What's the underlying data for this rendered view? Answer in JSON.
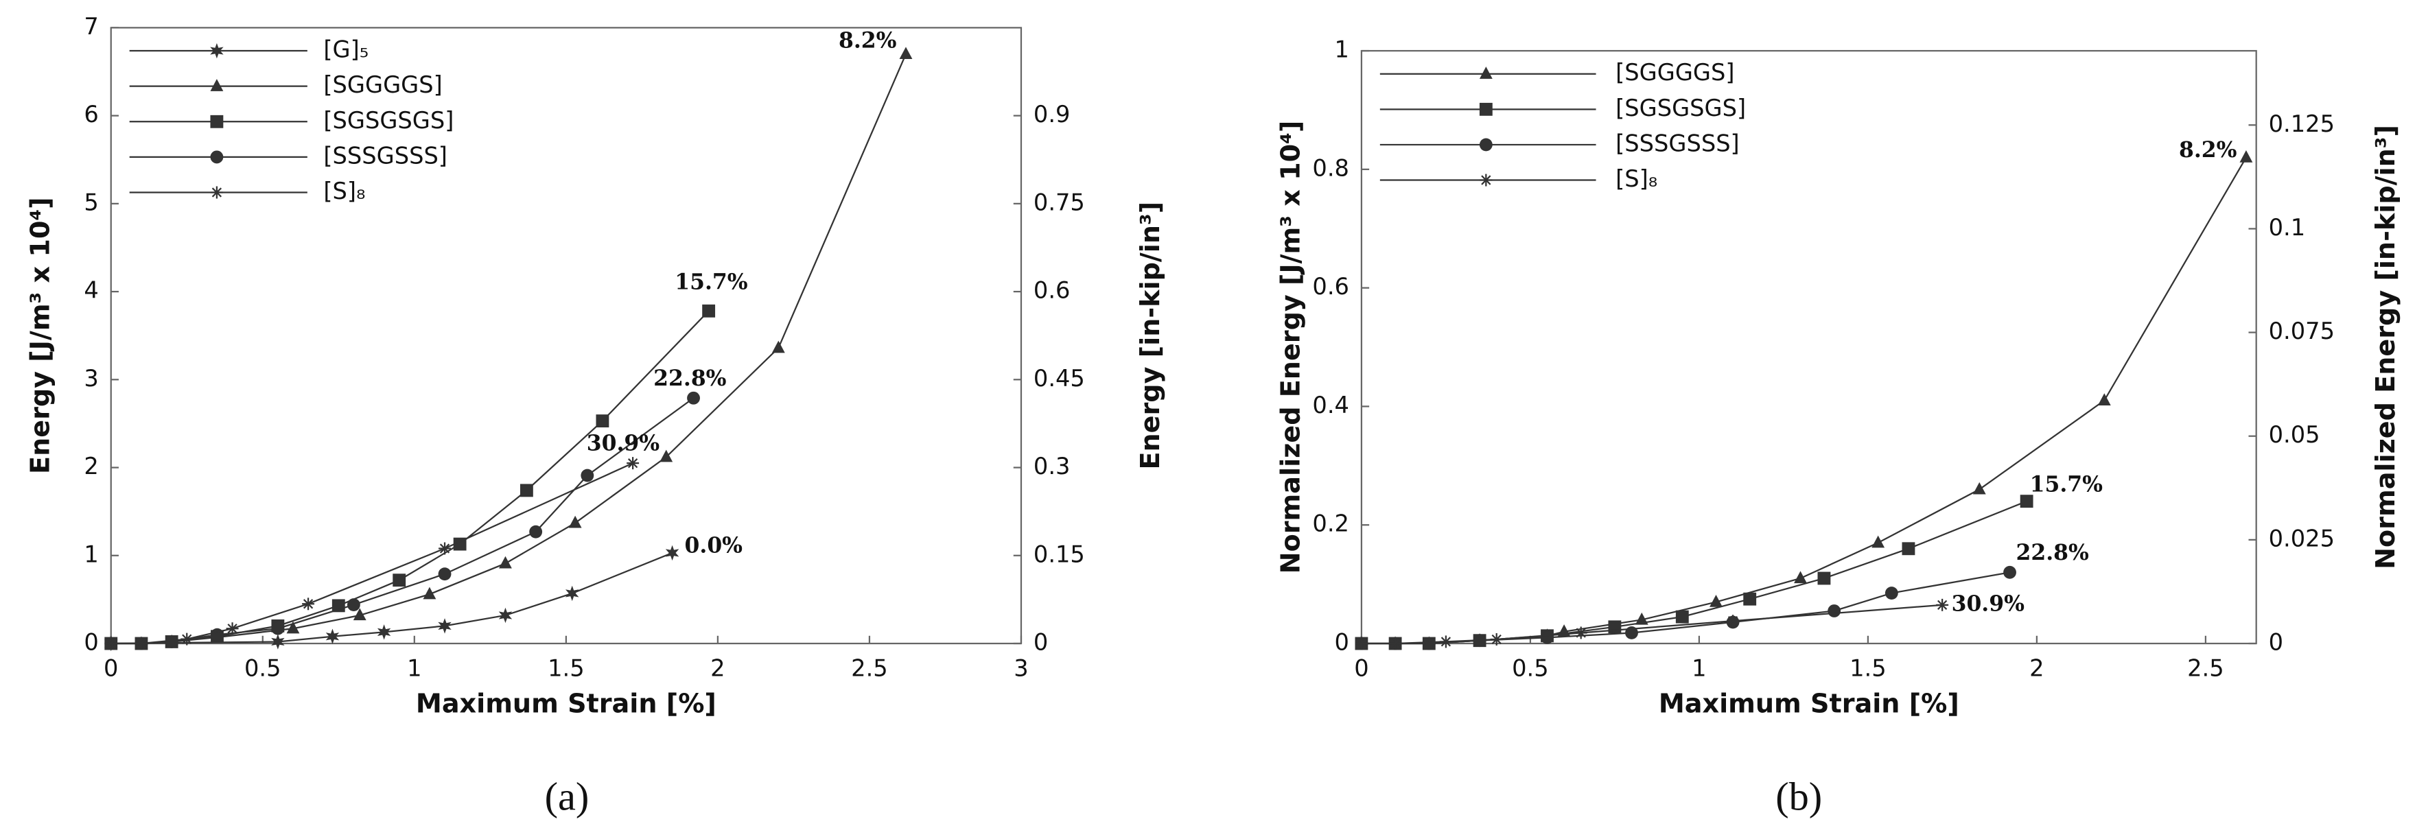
{
  "chart_data": [
    {
      "type": "line",
      "caption": "(a)",
      "x_label": "Maximum Strain [%]",
      "y_label": "Energy [J/m³ x 10⁴]",
      "y2_label": "Energy [in-kip/in³]",
      "xlim": [
        0,
        3
      ],
      "xticks": [
        0,
        0.5,
        1,
        1.5,
        2,
        2.5,
        3
      ],
      "ylim": [
        0,
        7
      ],
      "yticks": [
        0,
        1,
        2,
        3,
        4,
        5,
        6,
        7
      ],
      "y2lim": [
        0,
        1.05
      ],
      "y2ticks": [
        0,
        0.15,
        0.3,
        0.45,
        0.6,
        0.75,
        0.9
      ],
      "grid": false,
      "legend": "upper left",
      "series": [
        {
          "name": "[G]₅",
          "marker": "star",
          "color": "#333333",
          "label": "0.0%",
          "x": [
            0,
            0.55,
            0.73,
            0.9,
            1.1,
            1.3,
            1.52,
            1.85
          ],
          "values": [
            0,
            0.02,
            0.08,
            0.13,
            0.2,
            0.32,
            0.57,
            1.03
          ]
        },
        {
          "name": "[SGGGGS]",
          "marker": "triangle",
          "color": "#333333",
          "label": "8.2%",
          "x": [
            0,
            0.1,
            0.2,
            0.35,
            0.6,
            0.82,
            1.05,
            1.3,
            1.53,
            1.83,
            2.2,
            2.62
          ],
          "values": [
            0,
            0,
            0.02,
            0.07,
            0.17,
            0.32,
            0.56,
            0.91,
            1.37,
            2.12,
            3.36,
            6.7
          ]
        },
        {
          "name": "[SGSGSGS]",
          "marker": "square",
          "color": "#333333",
          "label": "15.7%",
          "x": [
            0,
            0.1,
            0.2,
            0.35,
            0.55,
            0.75,
            0.95,
            1.15,
            1.37,
            1.62,
            1.97
          ],
          "values": [
            0,
            0,
            0.02,
            0.08,
            0.2,
            0.43,
            0.72,
            1.13,
            1.74,
            2.53,
            3.78
          ]
        },
        {
          "name": "[SSSGSSS]",
          "marker": "circle",
          "color": "#333333",
          "label": "22.8%",
          "x": [
            0,
            0.1,
            0.2,
            0.35,
            0.55,
            0.8,
            1.1,
            1.4,
            1.57,
            1.92
          ],
          "values": [
            0,
            0,
            0.02,
            0.1,
            0.17,
            0.44,
            0.79,
            1.27,
            1.91,
            2.79
          ]
        },
        {
          "name": "[S]₈",
          "marker": "asterisk",
          "color": "#333333",
          "label": "30.9%",
          "x": [
            0,
            0.1,
            0.25,
            0.4,
            0.65,
            1.1,
            1.72
          ],
          "values": [
            0,
            0,
            0.05,
            0.17,
            0.45,
            1.08,
            2.05
          ]
        }
      ]
    },
    {
      "type": "line",
      "caption": "(b)",
      "x_label": "Maximum Strain [%]",
      "y_label": "Normalized Energy [J/m³ x 10⁴]",
      "y2_label": "Normalized Energy [in-kip/in³]",
      "xlim": [
        0,
        2.65
      ],
      "xticks": [
        0,
        0.5,
        1,
        1.5,
        2,
        2.5
      ],
      "ylim": [
        0,
        1
      ],
      "yticks": [
        0,
        0.2,
        0.4,
        0.6,
        0.8,
        1
      ],
      "y2lim": [
        0,
        0.1429
      ],
      "y2ticks": [
        0,
        0.025,
        0.05,
        0.075,
        0.1,
        0.125
      ],
      "grid": false,
      "legend": "upper left",
      "series": [
        {
          "name": "[SGGGGS]",
          "marker": "triangle",
          "color": "#333333",
          "label": "8.2%",
          "x": [
            0,
            0.1,
            0.2,
            0.35,
            0.55,
            0.6,
            0.83,
            1.05,
            1.3,
            1.53,
            1.83,
            2.2,
            2.62
          ],
          "values": [
            0,
            0,
            0,
            0.005,
            0.013,
            0.02,
            0.04,
            0.07,
            0.11,
            0.17,
            0.26,
            0.41,
            0.82
          ]
        },
        {
          "name": "[SGSGSGS]",
          "marker": "square",
          "color": "#333333",
          "label": "15.7%",
          "x": [
            0,
            0.1,
            0.2,
            0.35,
            0.55,
            0.75,
            0.95,
            1.15,
            1.37,
            1.62,
            1.97
          ],
          "values": [
            0,
            0,
            0,
            0.005,
            0.013,
            0.028,
            0.045,
            0.075,
            0.11,
            0.16,
            0.24
          ]
        },
        {
          "name": "[SSSGSSS]",
          "marker": "circle",
          "color": "#333333",
          "label": "22.8%",
          "x": [
            0,
            0.1,
            0.2,
            0.35,
            0.55,
            0.8,
            1.1,
            1.4,
            1.57,
            1.92
          ],
          "values": [
            0,
            0,
            0,
            0.005,
            0.01,
            0.018,
            0.036,
            0.055,
            0.085,
            0.12
          ]
        },
        {
          "name": "[S]₈",
          "marker": "asterisk",
          "color": "#333333",
          "label": "30.9%",
          "x": [
            0,
            0.1,
            0.25,
            0.4,
            0.65,
            1.1,
            1.72
          ],
          "values": [
            0,
            0,
            0.003,
            0.007,
            0.018,
            0.038,
            0.065
          ]
        }
      ]
    }
  ]
}
